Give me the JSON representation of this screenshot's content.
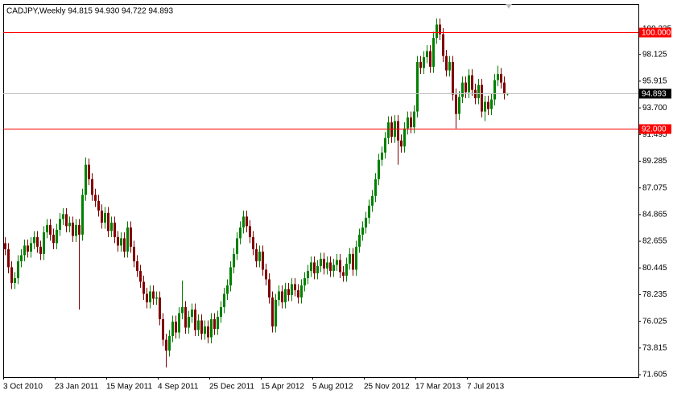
{
  "chart_data": {
    "type": "candlestick",
    "title": "CADJPY,Weekly  94.815 94.930 94.722 94.893",
    "categories": [
      "3 Oct 2010",
      null,
      null,
      null,
      null,
      null,
      null,
      null,
      null,
      null,
      null,
      null,
      null,
      null,
      null,
      null,
      "23 Jan 2011",
      null,
      null,
      null,
      null,
      null,
      null,
      null,
      null,
      null,
      null,
      null,
      null,
      null,
      null,
      null,
      "15 May 2011",
      null,
      null,
      null,
      null,
      null,
      null,
      null,
      null,
      null,
      null,
      null,
      null,
      null,
      null,
      null,
      "4 Sep 2011",
      null,
      null,
      null,
      null,
      null,
      null,
      null,
      null,
      null,
      null,
      null,
      null,
      null,
      null,
      null,
      "25 Dec 2011",
      null,
      null,
      null,
      null,
      null,
      null,
      null,
      null,
      null,
      null,
      null,
      null,
      null,
      null,
      null,
      "15 Apr 2012",
      null,
      null,
      null,
      null,
      null,
      null,
      null,
      null,
      null,
      null,
      null,
      null,
      null,
      null,
      null,
      "5 Aug 2012",
      null,
      null,
      null,
      null,
      null,
      null,
      null,
      null,
      null,
      null,
      null,
      null,
      null,
      null,
      null,
      "25 Nov 2012",
      null,
      null,
      null,
      null,
      null,
      null,
      null,
      null,
      null,
      null,
      null,
      null,
      null,
      null,
      null,
      "17 Mar 2013",
      null,
      null,
      null,
      null,
      null,
      null,
      null,
      null,
      null,
      null,
      null,
      null,
      null,
      null,
      null,
      "7 Jul 2013",
      null,
      null,
      null,
      null,
      null,
      null,
      null,
      null,
      null,
      null,
      null,
      null
    ],
    "open": [
      82.5,
      82.0,
      80.5,
      79.2,
      79.6,
      81.0,
      81.5,
      82.3,
      81.8,
      82.5,
      83.0,
      82.2,
      81.6,
      83.4,
      84.0,
      83.2,
      82.5,
      83.6,
      84.5,
      84.9,
      83.9,
      84.2,
      83.1,
      84.0,
      83.2,
      86.5,
      89.0,
      87.8,
      86.5,
      86.0,
      85.2,
      84.2,
      85.0,
      83.5,
      84.2,
      83.0,
      82.3,
      82.9,
      81.8,
      83.8,
      82.2,
      81.0,
      80.2,
      79.3,
      78.3,
      77.6,
      78.5,
      77.9,
      78.0,
      76.2,
      74.5,
      73.6,
      74.8,
      76.0,
      75.1,
      76.7,
      77.2,
      75.5,
      76.4,
      77.0,
      75.3,
      76.1,
      75.0,
      75.6,
      74.7,
      76.2,
      75.4,
      76.4,
      77.2,
      78.3,
      79.0,
      80.5,
      81.6,
      82.9,
      83.8,
      84.7,
      83.9,
      83.0,
      82.0,
      81.0,
      81.8,
      80.3,
      79.5,
      78.0,
      75.6,
      77.8,
      78.5,
      77.6,
      78.7,
      78.2,
      79.1,
      78.6,
      78.0,
      79.0,
      79.6,
      80.2,
      80.9,
      80.0,
      80.6,
      81.2,
      80.4,
      80.9,
      80.2,
      80.7,
      81.1,
      80.1,
      79.8,
      80.8,
      81.6,
      80.3,
      82.2,
      83.2,
      83.8,
      84.6,
      85.6,
      86.4,
      87.8,
      89.4,
      90.0,
      91.2,
      92.5,
      91.3,
      92.6,
      91.0,
      90.5,
      92.0,
      92.9,
      92.1,
      93.4,
      97.5,
      97.0,
      97.9,
      98.4,
      97.1,
      99.5,
      100.6,
      99.8,
      98.0,
      96.8,
      97.5,
      94.8,
      93.2,
      94.6,
      95.8,
      95.0,
      96.4,
      95.2,
      94.5,
      95.6,
      93.4,
      94.2,
      93.6,
      94.4,
      96.0,
      96.5,
      95.8,
      94.815
    ],
    "high": [
      83.0,
      82.5,
      81.0,
      80.1,
      81.5,
      82.0,
      82.8,
      82.8,
      83.0,
      83.5,
      83.5,
      82.7,
      83.9,
      84.5,
      84.5,
      83.7,
      84.1,
      85.0,
      85.4,
      85.4,
      84.7,
      84.7,
      84.5,
      84.5,
      87.0,
      89.6,
      89.5,
      88.3,
      87.0,
      86.5,
      85.7,
      85.5,
      85.5,
      84.7,
      84.7,
      83.5,
      83.4,
      83.4,
      84.3,
      84.3,
      82.7,
      81.5,
      80.7,
      79.8,
      78.8,
      79.0,
      79.0,
      78.5,
      78.5,
      76.7,
      75.0,
      75.3,
      76.5,
      76.5,
      77.2,
      79.4,
      77.7,
      76.9,
      77.5,
      77.5,
      76.6,
      76.6,
      76.1,
      76.1,
      76.7,
      76.7,
      76.9,
      77.7,
      78.8,
      79.5,
      81.0,
      82.1,
      83.4,
      84.3,
      85.2,
      85.2,
      84.4,
      83.5,
      82.5,
      82.3,
      82.3,
      80.8,
      80.0,
      78.5,
      78.3,
      79.0,
      79.0,
      79.2,
      79.2,
      79.6,
      79.6,
      79.1,
      79.5,
      80.1,
      80.7,
      81.4,
      81.4,
      81.1,
      81.7,
      81.7,
      81.4,
      81.4,
      81.2,
      81.6,
      81.6,
      80.6,
      81.3,
      82.1,
      82.1,
      82.7,
      83.7,
      84.3,
      85.1,
      86.1,
      86.9,
      88.3,
      89.9,
      90.5,
      91.7,
      93.0,
      93.0,
      93.1,
      93.1,
      91.5,
      92.5,
      93.4,
      93.4,
      93.9,
      98.0,
      98.0,
      98.4,
      98.9,
      98.9,
      100.0,
      101.1,
      101.1,
      100.3,
      98.5,
      98.0,
      98.0,
      95.3,
      95.1,
      96.3,
      96.3,
      96.9,
      96.9,
      95.7,
      96.1,
      96.1,
      94.7,
      94.7,
      94.9,
      96.5,
      97.2,
      97.0,
      96.3,
      94.93
    ],
    "low": [
      81.5,
      80.0,
      78.7,
      78.7,
      79.1,
      80.5,
      81.0,
      81.3,
      81.3,
      82.0,
      81.7,
      81.1,
      81.1,
      82.9,
      82.7,
      82.0,
      82.0,
      83.1,
      84.0,
      83.4,
      83.4,
      82.6,
      82.6,
      77.0,
      82.7,
      86.0,
      87.3,
      86.0,
      85.5,
      84.7,
      83.7,
      83.7,
      83.0,
      83.0,
      82.5,
      81.8,
      81.8,
      81.3,
      81.3,
      81.7,
      80.5,
      79.7,
      78.8,
      77.8,
      77.1,
      77.1,
      77.4,
      77.4,
      75.7,
      74.0,
      72.2,
      73.1,
      74.3,
      74.6,
      74.6,
      76.2,
      75.0,
      75.0,
      75.9,
      74.8,
      74.8,
      74.5,
      74.5,
      74.2,
      74.2,
      74.9,
      74.9,
      75.9,
      76.7,
      77.8,
      78.5,
      80.0,
      81.1,
      82.4,
      83.3,
      83.4,
      82.5,
      81.5,
      80.5,
      80.5,
      79.8,
      79.0,
      77.5,
      75.1,
      75.1,
      77.3,
      77.1,
      77.1,
      77.7,
      77.7,
      78.1,
      77.5,
      77.5,
      78.5,
      79.1,
      79.7,
      79.5,
      79.5,
      80.1,
      79.9,
      79.9,
      79.7,
      79.7,
      80.2,
      79.6,
      79.3,
      79.3,
      80.3,
      79.8,
      79.8,
      81.7,
      82.7,
      83.3,
      84.1,
      85.1,
      85.9,
      87.3,
      88.9,
      89.5,
      90.7,
      90.8,
      90.8,
      89.0,
      90.0,
      90.0,
      91.5,
      91.6,
      91.6,
      92.9,
      96.5,
      96.5,
      97.4,
      96.6,
      96.6,
      99.0,
      99.3,
      97.5,
      96.3,
      96.3,
      94.3,
      92.0,
      92.7,
      94.1,
      94.5,
      94.5,
      94.7,
      94.0,
      94.0,
      92.9,
      92.6,
      93.1,
      93.1,
      93.9,
      95.5,
      95.3,
      94.4,
      94.722
    ],
    "close": [
      82.0,
      80.5,
      79.2,
      79.6,
      81.0,
      81.5,
      82.3,
      81.8,
      82.5,
      83.0,
      82.2,
      81.6,
      83.4,
      84.0,
      83.2,
      82.5,
      83.6,
      84.5,
      84.9,
      83.9,
      84.2,
      83.1,
      84.0,
      83.2,
      86.5,
      89.0,
      87.8,
      86.5,
      86.0,
      85.2,
      84.2,
      85.0,
      83.5,
      84.2,
      83.0,
      82.3,
      82.9,
      81.8,
      83.8,
      82.2,
      81.0,
      80.2,
      79.3,
      78.3,
      77.6,
      78.5,
      77.9,
      78.0,
      76.2,
      74.5,
      73.6,
      74.8,
      76.0,
      75.1,
      76.7,
      77.2,
      75.5,
      76.4,
      77.0,
      75.3,
      76.1,
      75.0,
      75.6,
      74.7,
      76.2,
      75.4,
      76.4,
      77.2,
      78.3,
      79.0,
      80.5,
      81.6,
      82.9,
      83.8,
      84.7,
      83.9,
      83.0,
      82.0,
      81.0,
      81.8,
      80.3,
      79.5,
      78.0,
      75.6,
      77.8,
      78.5,
      77.6,
      78.7,
      78.2,
      79.1,
      78.6,
      78.0,
      79.0,
      79.6,
      80.2,
      80.9,
      80.0,
      80.6,
      81.2,
      80.4,
      80.9,
      80.2,
      80.7,
      81.1,
      80.1,
      79.8,
      80.8,
      81.6,
      80.3,
      82.2,
      83.2,
      83.8,
      84.6,
      85.6,
      86.4,
      87.8,
      89.4,
      90.0,
      91.2,
      92.5,
      91.3,
      92.6,
      91.0,
      90.5,
      92.0,
      92.9,
      92.1,
      93.4,
      97.5,
      97.0,
      97.9,
      98.4,
      97.1,
      99.5,
      100.6,
      99.8,
      98.0,
      96.8,
      97.5,
      94.8,
      93.2,
      94.6,
      95.8,
      95.0,
      96.4,
      95.2,
      94.5,
      95.6,
      93.4,
      94.2,
      93.6,
      94.4,
      96.0,
      96.5,
      95.8,
      94.9,
      94.893
    ],
    "bull_color": "#008000",
    "bear_color": "#800000",
    "ylim": [
      71.405,
      102.3
    ],
    "yticks": [
      100.235,
      98.125,
      95.915,
      {
        "value": 93.7,
        "label": "93.700"
      },
      91.495,
      89.285,
      87.075,
      84.865,
      82.655,
      80.445,
      78.235,
      76.025,
      73.815,
      71.605
    ],
    "price_lines": [
      {
        "value": 100,
        "label": "100.000",
        "color": "#ff0000",
        "label_color": "#ff0000"
      },
      {
        "value": 92,
        "label": "92.000",
        "color": "#ff0000",
        "label_color": "#ff0000"
      },
      {
        "value": 94.893,
        "label": "94.893",
        "color": "#c0c0c0",
        "label_color": "#000000"
      }
    ]
  }
}
